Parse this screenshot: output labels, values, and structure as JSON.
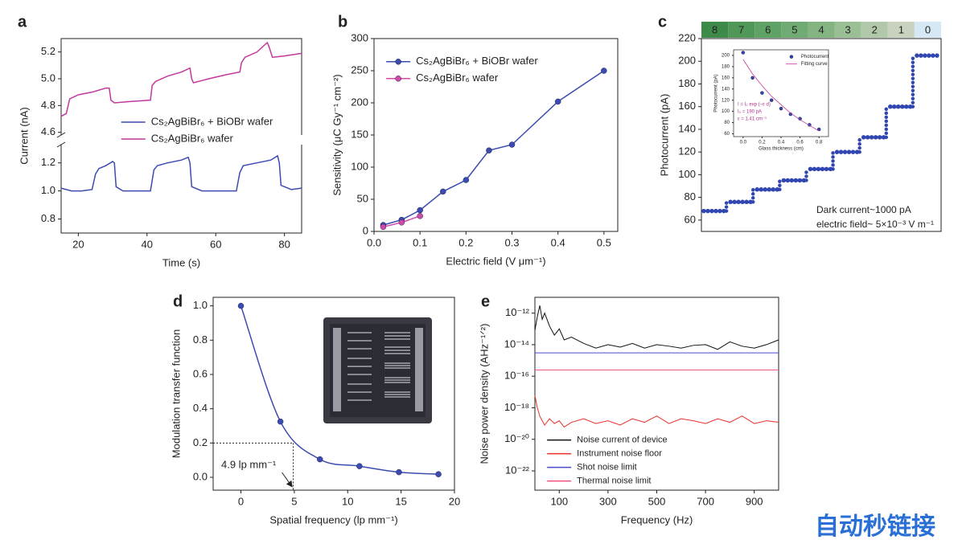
{
  "chart_data": [
    {
      "panel": "a",
      "type": "line",
      "xlabel": "Time (s)",
      "ylabel": "Current (nA)",
      "xlim": [
        15,
        85
      ],
      "xticks": [
        20,
        40,
        60,
        80
      ],
      "ylim": [
        0.7,
        1.33
      ],
      "yticks": [
        0.8,
        {
          "value": 1,
          "label": "1.0"
        },
        1.2
      ],
      "y2lim": [
        4.58,
        5.3
      ],
      "y2ticks": [
        4.6,
        4.8,
        {
          "value": 5,
          "label": "5.0"
        },
        5.2
      ],
      "broken_axis": true,
      "legend": "center-left",
      "series": [
        {
          "name": "Cs₂AgBiBr₆ + BiOBr wafer",
          "color": "#3b4bb0",
          "x": [
            15,
            18,
            21,
            24,
            25,
            26,
            28,
            30,
            30.5,
            31,
            33,
            36,
            41,
            42,
            43,
            46,
            50,
            52,
            52.5,
            53,
            56,
            60,
            66,
            67,
            68,
            72,
            76,
            78,
            78.5,
            79,
            82,
            85
          ],
          "values": [
            1.02,
            1.0,
            1.0,
            1.01,
            1.12,
            1.16,
            1.18,
            1.21,
            1.2,
            1.03,
            1.0,
            1.0,
            1.0,
            1.15,
            1.18,
            1.2,
            1.22,
            1.24,
            1.2,
            1.03,
            1.0,
            1.0,
            1.0,
            1.13,
            1.18,
            1.2,
            1.22,
            1.25,
            1.2,
            1.04,
            1.01,
            1.02
          ]
        },
        {
          "name": "Cs₂AgBiBr₆ wafer",
          "color": "#c2399b",
          "axis": "y2",
          "x": [
            15,
            16.5,
            17.5,
            20,
            24,
            28,
            29,
            29.5,
            30.5,
            35,
            41,
            41.5,
            42.5,
            46,
            50,
            52.5,
            53,
            53.5,
            58,
            63,
            67,
            67.5,
            68.5,
            72,
            75,
            75.5,
            76.5,
            80,
            85
          ],
          "values": [
            4.72,
            4.74,
            4.85,
            4.88,
            4.9,
            4.93,
            4.93,
            4.84,
            4.82,
            4.83,
            4.84,
            4.95,
            4.98,
            5.02,
            5.05,
            5.08,
            5.0,
            4.97,
            5.0,
            5.03,
            5.05,
            5.12,
            5.16,
            5.2,
            5.27,
            5.24,
            5.16,
            5.17,
            5.19
          ]
        }
      ]
    },
    {
      "panel": "b",
      "type": "line",
      "markers": true,
      "xlabel": "Electric field (V μm⁻¹)",
      "ylabel": "Sensitivity (μC Gy⁻¹ cm⁻²)",
      "xlim": [
        0,
        0.53
      ],
      "xticks": [
        {
          "value": 0,
          "label": "0.0"
        },
        0.1,
        0.2,
        0.3,
        0.4,
        0.5
      ],
      "ylim": [
        0,
        300
      ],
      "yticks": [
        0,
        50,
        100,
        150,
        200,
        250,
        300
      ],
      "legend": "upper-left",
      "series": [
        {
          "name": "Cs₂AgBiBr₆ + BiOBr wafer",
          "color": "#3b4bb0",
          "x": [
            0.02,
            0.06,
            0.1,
            0.15,
            0.2,
            0.25,
            0.3,
            0.4,
            0.5
          ],
          "values": [
            10,
            18,
            33,
            62,
            80,
            126,
            135,
            202,
            250
          ]
        },
        {
          "name": "Cs₂AgBiBr₆ wafer",
          "color": "#d04aa8",
          "x": [
            0.02,
            0.06,
            0.1
          ],
          "values": [
            7,
            14,
            24
          ]
        }
      ]
    },
    {
      "panel": "c",
      "type": "step",
      "ylabel": "Photocurrent (pA)",
      "ylim": [
        50,
        220
      ],
      "yticks": [
        60,
        80,
        100,
        120,
        140,
        160,
        180,
        200,
        220
      ],
      "categories": [
        "8",
        "7",
        "6",
        "5",
        "4",
        "3",
        "2",
        "1",
        "0"
      ],
      "category_colors": [
        "#3e8a4a",
        "#4f9858",
        "#5fa266",
        "#70ab74",
        "#83b482",
        "#9bbf95",
        "#b2c9a9",
        "#c9d2bf",
        "#d7e8f5"
      ],
      "values": [
        68,
        76,
        87,
        95,
        105,
        120,
        133,
        160,
        205
      ],
      "color": "#3146b0",
      "annotations": [
        "Dark current~1000 pA",
        "electric field~ 5×10⁻³ V m⁻¹"
      ]
    },
    {
      "type": "scatter",
      "xlabel": "Glass thickness (cm)",
      "ylabel": "Photocurrent (pA)",
      "xlim": [
        -0.1,
        0.9
      ],
      "xticks": [
        {
          "value": 0,
          "label": "0.0"
        },
        0.2,
        0.4,
        0.6,
        0.8
      ],
      "ylim": [
        55,
        210
      ],
      "yticks": [
        60,
        80,
        100,
        120,
        140,
        160,
        180,
        200
      ],
      "legend": "upper-right",
      "series": [
        {
          "name": "Photocurrent",
          "color": "#3146b0",
          "x": [
            0,
            0.1,
            0.2,
            0.3,
            0.4,
            0.5,
            0.6,
            0.7,
            0.8
          ],
          "values": [
            205,
            160,
            133,
            120,
            105,
            95,
            87,
            76,
            68
          ]
        },
        {
          "name": "Fitting curve",
          "color": "#c2399b",
          "mode": "line",
          "x": [
            0,
            0.1,
            0.2,
            0.3,
            0.4,
            0.5,
            0.6,
            0.7,
            0.8
          ],
          "values": [
            193,
            167,
            146,
            127,
            112,
            97,
            85,
            75,
            65
          ]
        }
      ],
      "annotations": [
        "I = I₀ exp (−ε d)",
        "I₀ = 190 pA",
        "ε = 1.41 cm⁻¹"
      ]
    },
    {
      "panel": "d",
      "type": "line",
      "smooth": true,
      "markers": true,
      "xlabel": "Spatial frequency (lp mm⁻¹)",
      "ylabel": "Modulation transfer function",
      "xlim": [
        -2.6,
        20
      ],
      "xticks": [
        0,
        5,
        10,
        15,
        20
      ],
      "ylim": [
        -0.075,
        1.05
      ],
      "yticks": [
        {
          "value": 0,
          "label": "0.0"
        },
        0.2,
        0.4,
        0.6,
        0.8,
        {
          "value": 1,
          "label": "1.0"
        }
      ],
      "series": [
        {
          "color": "#3b4bb0",
          "x": [
            0,
            3.7,
            7.4,
            11.1,
            14.8,
            18.5
          ],
          "values": [
            1.0,
            0.325,
            0.105,
            0.065,
            0.03,
            0.018
          ]
        }
      ],
      "reference": {
        "x": 4.9,
        "y": 0.2,
        "label": "4.9 lp mm⁻¹"
      }
    },
    {
      "panel": "e",
      "type": "line",
      "log_y": true,
      "xlabel": "Frequency (Hz)",
      "ylabel": "Noise power density (AHz⁻¹ᐟ²)",
      "xlim": [
        0,
        1000
      ],
      "xticks": [
        100,
        300,
        500,
        700,
        900
      ],
      "ylim": [
        6e-24,
        1e-11
      ],
      "yticks": [
        {
          "value": 1e-12,
          "label": "10⁻¹²"
        },
        {
          "value": 1e-14,
          "label": "10⁻¹⁴"
        },
        {
          "value": 1e-16,
          "label": "10⁻¹⁶"
        },
        {
          "value": 1e-18,
          "label": "10⁻¹⁸"
        },
        {
          "value": 1e-20,
          "label": "10⁻²⁰"
        },
        {
          "value": 1e-22,
          "label": "10⁻²²"
        }
      ],
      "legend": "lower-left",
      "series": [
        {
          "name": "Noise current of device",
          "color": "#111111",
          "x": [
            0,
            10,
            20,
            30,
            40,
            60,
            80,
            100,
            120,
            150,
            200,
            250,
            300,
            350,
            400,
            450,
            500,
            550,
            600,
            650,
            700,
            750,
            800,
            850,
            900,
            950,
            1000
          ],
          "values": [
            8e-14,
            6e-13,
            3e-12,
            4e-13,
            1e-12,
            1.5e-13,
            4e-14,
            1e-13,
            2e-14,
            3e-14,
            1.2e-14,
            6e-15,
            1e-14,
            7e-15,
            1.2e-14,
            6e-15,
            1e-14,
            8e-15,
            6e-15,
            9e-15,
            1e-14,
            5e-15,
            1.5e-14,
            8e-15,
            6e-15,
            1e-14,
            2e-14
          ]
        },
        {
          "name": "Instrument noise floor",
          "color": "#e8302a",
          "x": [
            0,
            10,
            20,
            30,
            40,
            60,
            80,
            100,
            120,
            150,
            200,
            250,
            300,
            350,
            400,
            450,
            500,
            550,
            600,
            650,
            700,
            750,
            800,
            850,
            900,
            950,
            1000
          ],
          "values": [
            6e-18,
            1e-18,
            3e-19,
            1.5e-19,
            8e-20,
            2e-19,
            1e-19,
            1.5e-19,
            6e-20,
            1.2e-19,
            2e-19,
            1e-19,
            1.5e-19,
            8e-20,
            2e-19,
            1.2e-19,
            3e-19,
            1e-19,
            2e-19,
            1.5e-19,
            1e-19,
            2e-19,
            1.2e-19,
            3e-19,
            1e-19,
            1.5e-19,
            1.2e-19
          ]
        },
        {
          "name": "Shot noise limit",
          "color": "#4a4acf",
          "x": [
            0,
            1000
          ],
          "values": [
            3e-15,
            3e-15
          ]
        },
        {
          "name": "Thermal noise limit",
          "color": "#f0507a",
          "x": [
            0,
            1000
          ],
          "values": [
            2.5e-16,
            2.5e-16
          ]
        }
      ]
    }
  ],
  "watermark": "自动秒链接"
}
